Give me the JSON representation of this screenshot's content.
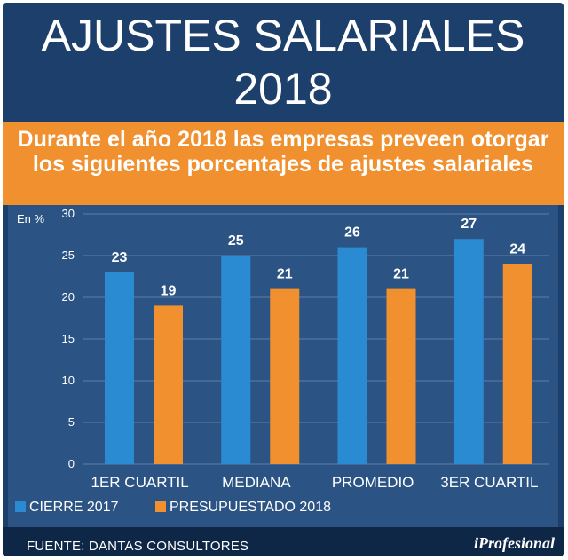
{
  "title_line1": "AJUSTES SALARIALES",
  "title_line2": "2018",
  "subtitle": "Durante el año 2018 las empresas preveen otorgar los siguientes porcentajes de ajustes salariales",
  "footer": {
    "source": "FUENTE: DANTAS CONSULTORES",
    "logo": "iProfesional"
  },
  "colors": {
    "background": "#1c3f6c",
    "panel": "#2b5383",
    "accent": "#f0902f",
    "series1": "#2a8bd2",
    "series2": "#f0902f"
  },
  "chart_data": {
    "type": "bar",
    "unit_label": "En %",
    "categories": [
      "1ER CUARTIL",
      "MEDIANA",
      "PROMEDIO",
      "3ER CUARTIL"
    ],
    "series": [
      {
        "name": "CIERRE 2017",
        "values": [
          23,
          25,
          26,
          27
        ]
      },
      {
        "name": "PRESUPUESTADO 2018",
        "values": [
          19,
          21,
          21,
          24
        ]
      }
    ],
    "yticks": [
      0,
      5,
      10,
      15,
      20,
      25,
      30
    ],
    "ylim": [
      0,
      30
    ],
    "grid": true,
    "legend": "bottom-left",
    "data_labels": true
  }
}
